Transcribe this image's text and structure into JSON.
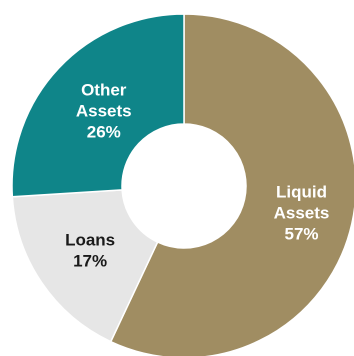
{
  "chart_data": {
    "type": "pie",
    "variant": "donut",
    "title": "",
    "slices": [
      {
        "label_lines": [
          "Liquid",
          "Assets"
        ],
        "percent_label": "57%",
        "value": 57,
        "color": "#a08d62",
        "text_color": "#ffffff"
      },
      {
        "label_lines": [
          "Loans"
        ],
        "percent_label": "17%",
        "value": 17,
        "color": "#e6e6e6",
        "text_color": "#1a1a1a"
      },
      {
        "label_lines": [
          "Other",
          "Assets"
        ],
        "percent_label": "26%",
        "value": 26,
        "color": "#0f8589",
        "text_color": "#ffffff"
      }
    ],
    "legend": "none",
    "start_angle": "top, clockwise"
  }
}
